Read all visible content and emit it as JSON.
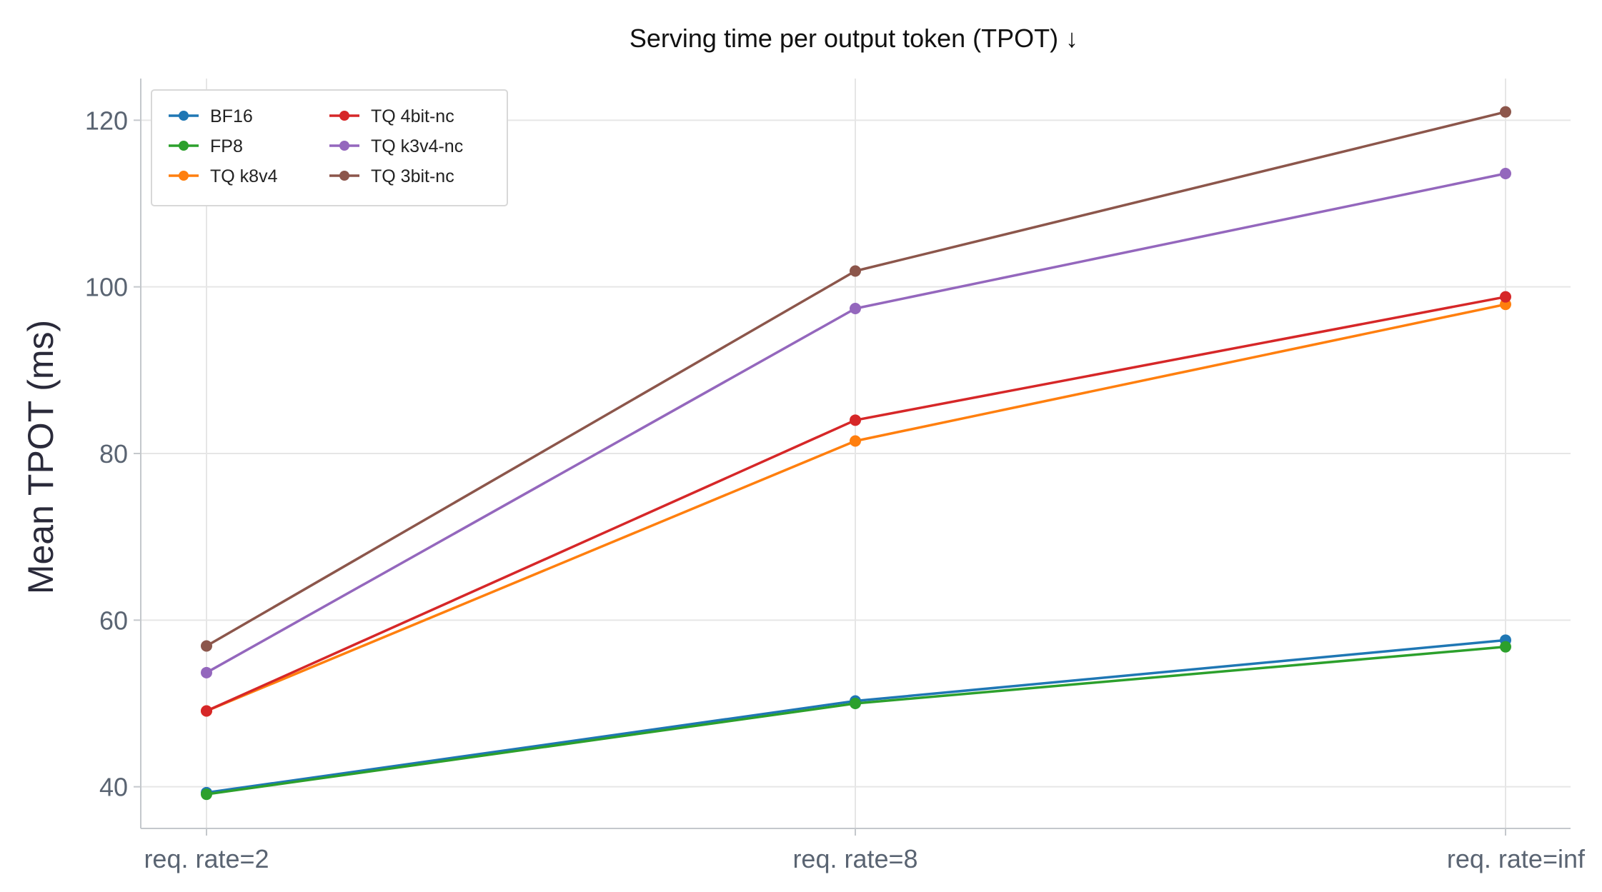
{
  "chart_data": {
    "type": "line",
    "title": "Serving time per output token (TPOT)  ↓",
    "xlabel": "",
    "ylabel": "Mean TPOT (ms)",
    "categories": [
      "req. rate=2",
      "req. rate=8",
      "req. rate=inf"
    ],
    "ylim": [
      35,
      125
    ],
    "yticks": [
      40,
      60,
      80,
      100,
      120
    ],
    "grid": true,
    "legend_position": "top-left",
    "series": [
      {
        "name": "BF16",
        "color": "#1f77b4",
        "values": [
          39.3,
          50.3,
          57.6
        ]
      },
      {
        "name": "FP8",
        "color": "#2ca02c",
        "values": [
          39.1,
          50.0,
          56.8
        ]
      },
      {
        "name": "TQ k8v4",
        "color": "#ff7f0e",
        "values": [
          49.1,
          81.5,
          97.9
        ]
      },
      {
        "name": "TQ 4bit-nc",
        "color": "#d62728",
        "values": [
          49.1,
          84.0,
          98.8
        ]
      },
      {
        "name": "TQ k3v4-nc",
        "color": "#9467bd",
        "values": [
          53.7,
          97.4,
          113.6
        ]
      },
      {
        "name": "TQ 3bit-nc",
        "color": "#8c564b",
        "values": [
          56.9,
          101.9,
          121.0
        ]
      }
    ]
  }
}
